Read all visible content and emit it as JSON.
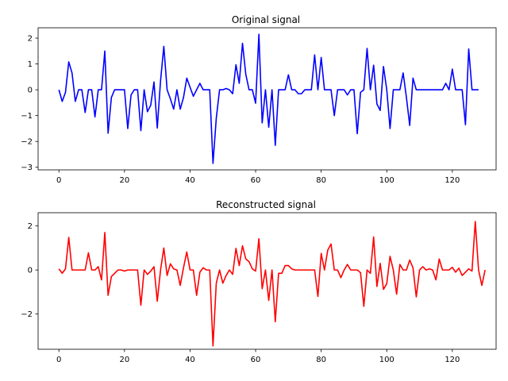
{
  "chart_data": [
    {
      "type": "line",
      "title": "Original signal",
      "xlabel": "",
      "ylabel": "",
      "xlim": [
        -6.35,
        133.35
      ],
      "ylim": [
        -3.1,
        2.4
      ],
      "xticks": [
        0,
        20,
        40,
        60,
        80,
        100,
        120
      ],
      "yticks": [
        2,
        1,
        0,
        -1,
        -2,
        -3
      ],
      "grid": false,
      "color": "#0000ff",
      "x_start": 0,
      "series": [
        {
          "values": [
            0.0,
            -0.45,
            -0.1,
            1.08,
            0.65,
            -0.45,
            0.0,
            0.0,
            -0.88,
            0.0,
            0.0,
            -1.05,
            0.0,
            0.0,
            1.5,
            -1.68,
            -0.3,
            0.0,
            0.0,
            0.0,
            0.0,
            -1.5,
            -0.2,
            0.0,
            0.0,
            -1.58,
            0.0,
            -0.85,
            -0.6,
            0.3,
            -1.48,
            0.35,
            1.68,
            0.0,
            -0.35,
            -0.75,
            0.0,
            -0.75,
            -0.3,
            0.45,
            0.1,
            -0.25,
            0.0,
            0.25,
            0.0,
            0.0,
            0.0,
            -2.85,
            -1.1,
            0.0,
            0.0,
            0.05,
            0.0,
            -0.15,
            0.97,
            0.25,
            1.8,
            0.6,
            0.0,
            0.0,
            -0.52,
            2.15,
            -1.28,
            0.0,
            -1.45,
            0.0,
            -2.15,
            0.0,
            0.0,
            0.0,
            0.58,
            0.0,
            0.0,
            -0.15,
            -0.15,
            0.0,
            0.0,
            0.0,
            1.35,
            0.0,
            1.25,
            0.0,
            0.0,
            0.0,
            -1.0,
            0.0,
            0.0,
            0.0,
            -0.2,
            0.0,
            0.0,
            -1.7,
            -0.1,
            0.0,
            1.6,
            0.0,
            0.95,
            -0.55,
            -0.8,
            0.9,
            0.0,
            -1.5,
            0.0,
            0.0,
            0.0,
            0.65,
            -0.3,
            -1.38,
            0.45,
            0.0,
            0.0,
            0.0,
            0.0,
            0.0,
            0.0,
            0.0,
            0.0,
            0.0,
            0.25,
            0.0,
            0.8,
            0.0,
            0.0,
            0.0,
            -1.35,
            1.58,
            0.0,
            0.0,
            0.0
          ]
        }
      ]
    },
    {
      "type": "line",
      "title": "Reconstructed signal",
      "xlabel": "",
      "ylabel": "",
      "xlim": [
        -6.35,
        133.35
      ],
      "ylim": [
        -3.6,
        2.6
      ],
      "xticks": [
        0,
        20,
        40,
        60,
        80,
        100,
        120
      ],
      "yticks": [
        2,
        0,
        -2
      ],
      "grid": false,
      "color": "#ff0000",
      "x_start": 0,
      "series": [
        {
          "values": [
            0.05,
            -0.15,
            0.05,
            1.48,
            0.0,
            0.0,
            0.0,
            0.0,
            0.0,
            0.78,
            0.0,
            0.0,
            0.15,
            -0.45,
            1.7,
            -1.15,
            -0.3,
            -0.15,
            0.0,
            0.0,
            -0.05,
            0.0,
            0.0,
            0.0,
            0.0,
            -1.6,
            0.0,
            -0.2,
            -0.05,
            0.15,
            -1.42,
            0.0,
            1.0,
            -0.25,
            0.28,
            0.05,
            0.0,
            -0.7,
            0.1,
            0.82,
            0.0,
            0.0,
            -1.15,
            -0.1,
            0.1,
            0.0,
            0.0,
            -3.45,
            -0.6,
            0.0,
            -0.6,
            -0.25,
            0.0,
            -0.2,
            0.98,
            0.2,
            1.1,
            0.5,
            0.38,
            0.05,
            -0.05,
            1.42,
            -0.85,
            0.0,
            -1.38,
            0.0,
            -2.35,
            -0.15,
            -0.15,
            0.2,
            0.2,
            0.05,
            0.0,
            0.0,
            0.0,
            0.0,
            0.0,
            0.0,
            0.0,
            -1.2,
            0.75,
            0.0,
            0.9,
            1.18,
            0.0,
            0.0,
            -0.35,
            0.0,
            0.25,
            0.0,
            0.0,
            0.0,
            -0.12,
            -1.65,
            0.0,
            -0.15,
            1.5,
            -0.75,
            0.3,
            -0.88,
            -0.62,
            0.62,
            0.0,
            -1.1,
            0.25,
            0.0,
            0.0,
            0.45,
            0.1,
            -1.22,
            0.0,
            0.15,
            0.0,
            0.05,
            0.0,
            -0.45,
            0.5,
            0.0,
            0.0,
            0.0,
            0.12,
            -0.1,
            0.08,
            -0.25,
            -0.1,
            0.05,
            -0.05,
            2.2,
            0.0,
            -0.7,
            0.0
          ]
        }
      ]
    }
  ],
  "plots": {
    "top_title": "Original signal",
    "bottom_title": "Reconstructed signal"
  }
}
